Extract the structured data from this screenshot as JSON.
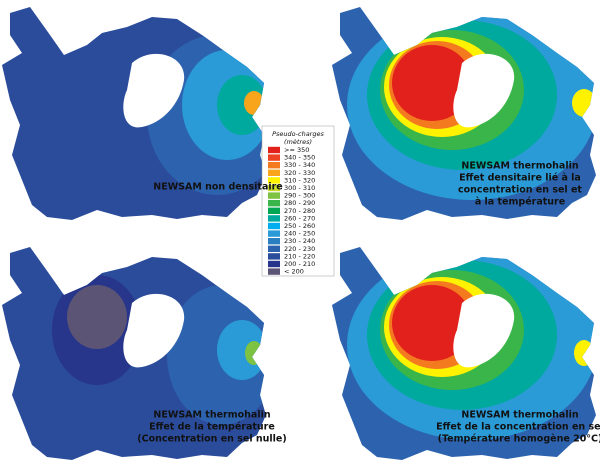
{
  "legend": {
    "title": "Pseudo-charges",
    "subtitle": "(mètres)",
    "items": [
      {
        "label": ">= 350",
        "color": "#e3211c"
      },
      {
        "label": "340 - 350",
        "color": "#ee4224"
      },
      {
        "label": "330 - 340",
        "color": "#f47a20"
      },
      {
        "label": "320 - 330",
        "color": "#f9a51b"
      },
      {
        "label": "310 - 320",
        "color": "#fff200"
      },
      {
        "label": "300 - 310",
        "color": "#c9dc2e"
      },
      {
        "label": "290 - 300",
        "color": "#7dc242"
      },
      {
        "label": "280 - 290",
        "color": "#3ab54a"
      },
      {
        "label": "270 - 280",
        "color": "#00a651"
      },
      {
        "label": "260 - 270",
        "color": "#00a99d"
      },
      {
        "label": "250 - 260",
        "color": "#00aeef"
      },
      {
        "label": "240 - 250",
        "color": "#2a9bd7"
      },
      {
        "label": "230 - 240",
        "color": "#2a7fc1"
      },
      {
        "label": "220 - 230",
        "color": "#2d63ae"
      },
      {
        "label": "210 - 220",
        "color": "#2b4c9b"
      },
      {
        "label": "200 - 210",
        "color": "#27358a"
      },
      {
        "label": "< 200",
        "color": "#5b5475"
      }
    ]
  },
  "panels": [
    {
      "caption": [
        "NEWSAM non densitaire"
      ]
    },
    {
      "caption": [
        "NEWSAM thermohalin",
        "Effet densitaire lié à la",
        "concentration en sel et",
        "à la température"
      ]
    },
    {
      "caption": [
        "NEWSAM thermohalin",
        "Effet de la température",
        "(Concentration en sel nulle)"
      ]
    },
    {
      "caption": [
        "NEWSAM thermohalin",
        "Effet de la concentration en sel",
        "(Température homogène 20°C)"
      ]
    }
  ]
}
